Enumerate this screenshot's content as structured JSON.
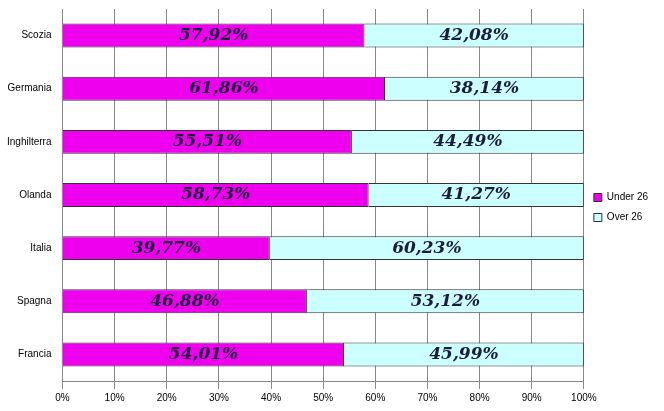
{
  "chart_data": {
    "type": "bar",
    "orientation": "horizontal",
    "stacked": true,
    "categories": [
      "Scozia",
      "Germania",
      "Inghilterra",
      "Olanda",
      "Italia",
      "Spagna",
      "Francia"
    ],
    "series": [
      {
        "name": "Under 26",
        "color": "#ee00ee",
        "values": [
          57.92,
          61.86,
          55.51,
          58.73,
          39.77,
          46.88,
          54.01
        ],
        "value_labels": [
          "57,92%",
          "61,86%",
          "55,51%",
          "58,73%",
          "39,77%",
          "46,88%",
          "54,01%"
        ]
      },
      {
        "name": "Over 26",
        "color": "#ccffff",
        "values": [
          42.08,
          38.14,
          44.49,
          41.27,
          60.23,
          53.12,
          45.99
        ],
        "value_labels": [
          "42,08%",
          "38,14%",
          "44,49%",
          "41,27%",
          "60,23%",
          "53,12%",
          "45,99%"
        ]
      }
    ],
    "xlim": [
      0,
      100
    ],
    "xticks": [
      {
        "value": 0,
        "label": "0%"
      },
      {
        "value": 10,
        "label": "10%"
      },
      {
        "value": 20,
        "label": "20%"
      },
      {
        "value": 30,
        "label": "30%"
      },
      {
        "value": 40,
        "label": "40%"
      },
      {
        "value": 50,
        "label": "50%"
      },
      {
        "value": 60,
        "label": "60%"
      },
      {
        "value": 70,
        "label": "70%"
      },
      {
        "value": 80,
        "label": "80%"
      },
      {
        "value": 90,
        "label": "90%"
      },
      {
        "value": 100,
        "label": "100%"
      }
    ],
    "grid": true,
    "legend": "right",
    "data_labels": true
  }
}
